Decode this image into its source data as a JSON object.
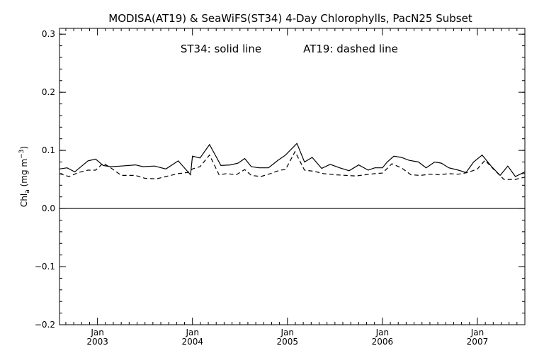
{
  "chart_data": {
    "type": "line",
    "title": "MODISA(AT19) & SeaWiFS(ST34) 4-Day Chlorophylls, PacN25 Subset",
    "annotation": {
      "solid": "ST34: solid line",
      "dashed": "AT19: dashed line"
    },
    "ylabel": {
      "base": "Chl",
      "subscript": "a",
      "unit_open": " (mg m",
      "unit_exp": "−3",
      "unit_close": ")"
    },
    "xlim": [
      2002.6,
      2007.5
    ],
    "ylim": [
      -0.2,
      0.31
    ],
    "y_major_ticks": [
      {
        "value": -0.2,
        "label": "−0.2"
      },
      {
        "value": -0.1,
        "label": "−0.1"
      },
      {
        "value": 0.0,
        "label": "0.0"
      },
      {
        "value": 0.1,
        "label": "0.1"
      },
      {
        "value": 0.2,
        "label": "0.2"
      },
      {
        "value": 0.3,
        "label": "0.3"
      }
    ],
    "y_minor_step": 0.02,
    "x_year_ticks": [
      {
        "value": 2003.0,
        "month": "Jan",
        "year": "2003"
      },
      {
        "value": 2004.0,
        "month": "Jan",
        "year": "2004"
      },
      {
        "value": 2005.0,
        "month": "Jan",
        "year": "2005"
      },
      {
        "value": 2006.0,
        "month": "Jan",
        "year": "2006"
      },
      {
        "value": 2007.0,
        "month": "Jan",
        "year": "2007"
      }
    ],
    "zero_line": 0.0,
    "series": [
      {
        "name": "ST34",
        "style": "solid",
        "points": [
          [
            2002.6,
            0.068
          ],
          [
            2002.68,
            0.07
          ],
          [
            2002.76,
            0.063
          ],
          [
            2002.9,
            0.082
          ],
          [
            2002.98,
            0.085
          ],
          [
            2003.06,
            0.074
          ],
          [
            2003.14,
            0.072
          ],
          [
            2003.25,
            0.073
          ],
          [
            2003.4,
            0.075
          ],
          [
            2003.48,
            0.072
          ],
          [
            2003.6,
            0.073
          ],
          [
            2003.72,
            0.068
          ],
          [
            2003.85,
            0.082
          ],
          [
            2003.98,
            0.058
          ],
          [
            2004.0,
            0.09
          ],
          [
            2004.08,
            0.087
          ],
          [
            2004.18,
            0.11
          ],
          [
            2004.3,
            0.074
          ],
          [
            2004.4,
            0.075
          ],
          [
            2004.48,
            0.078
          ],
          [
            2004.55,
            0.086
          ],
          [
            2004.62,
            0.072
          ],
          [
            2004.7,
            0.07
          ],
          [
            2004.8,
            0.07
          ],
          [
            2004.9,
            0.083
          ],
          [
            2004.98,
            0.092
          ],
          [
            2005.1,
            0.112
          ],
          [
            2005.18,
            0.08
          ],
          [
            2005.26,
            0.088
          ],
          [
            2005.36,
            0.069
          ],
          [
            2005.45,
            0.076
          ],
          [
            2005.55,
            0.07
          ],
          [
            2005.65,
            0.065
          ],
          [
            2005.75,
            0.075
          ],
          [
            2005.85,
            0.066
          ],
          [
            2005.92,
            0.07
          ],
          [
            2006.0,
            0.07
          ],
          [
            2006.05,
            0.08
          ],
          [
            2006.12,
            0.09
          ],
          [
            2006.2,
            0.088
          ],
          [
            2006.28,
            0.083
          ],
          [
            2006.38,
            0.08
          ],
          [
            2006.46,
            0.07
          ],
          [
            2006.55,
            0.08
          ],
          [
            2006.62,
            0.078
          ],
          [
            2006.7,
            0.07
          ],
          [
            2006.8,
            0.066
          ],
          [
            2006.88,
            0.062
          ],
          [
            2006.96,
            0.08
          ],
          [
            2007.05,
            0.092
          ],
          [
            2007.15,
            0.072
          ],
          [
            2007.24,
            0.057
          ],
          [
            2007.32,
            0.073
          ],
          [
            2007.4,
            0.055
          ],
          [
            2007.5,
            0.063
          ]
        ]
      },
      {
        "name": "AT19",
        "style": "dashed",
        "points": [
          [
            2002.6,
            0.06
          ],
          [
            2002.7,
            0.055
          ],
          [
            2002.8,
            0.062
          ],
          [
            2002.9,
            0.066
          ],
          [
            2002.98,
            0.066
          ],
          [
            2003.06,
            0.078
          ],
          [
            2003.14,
            0.07
          ],
          [
            2003.25,
            0.057
          ],
          [
            2003.4,
            0.057
          ],
          [
            2003.5,
            0.052
          ],
          [
            2003.62,
            0.051
          ],
          [
            2003.72,
            0.055
          ],
          [
            2003.85,
            0.06
          ],
          [
            2003.95,
            0.062
          ],
          [
            2004.0,
            0.068
          ],
          [
            2004.08,
            0.072
          ],
          [
            2004.18,
            0.092
          ],
          [
            2004.28,
            0.058
          ],
          [
            2004.36,
            0.06
          ],
          [
            2004.46,
            0.058
          ],
          [
            2004.55,
            0.067
          ],
          [
            2004.62,
            0.057
          ],
          [
            2004.72,
            0.055
          ],
          [
            2004.82,
            0.06
          ],
          [
            2004.92,
            0.066
          ],
          [
            2004.98,
            0.067
          ],
          [
            2005.08,
            0.098
          ],
          [
            2005.18,
            0.066
          ],
          [
            2005.28,
            0.064
          ],
          [
            2005.38,
            0.06
          ],
          [
            2005.5,
            0.058
          ],
          [
            2005.62,
            0.057
          ],
          [
            2005.72,
            0.056
          ],
          [
            2005.82,
            0.058
          ],
          [
            2005.92,
            0.06
          ],
          [
            2006.0,
            0.061
          ],
          [
            2006.1,
            0.077
          ],
          [
            2006.2,
            0.07
          ],
          [
            2006.3,
            0.058
          ],
          [
            2006.4,
            0.057
          ],
          [
            2006.5,
            0.059
          ],
          [
            2006.6,
            0.058
          ],
          [
            2006.7,
            0.06
          ],
          [
            2006.8,
            0.059
          ],
          [
            2006.9,
            0.062
          ],
          [
            2007.0,
            0.068
          ],
          [
            2007.08,
            0.083
          ],
          [
            2007.18,
            0.066
          ],
          [
            2007.28,
            0.05
          ],
          [
            2007.4,
            0.05
          ],
          [
            2007.5,
            0.054
          ]
        ]
      }
    ],
    "grid": false,
    "legend": "none"
  }
}
